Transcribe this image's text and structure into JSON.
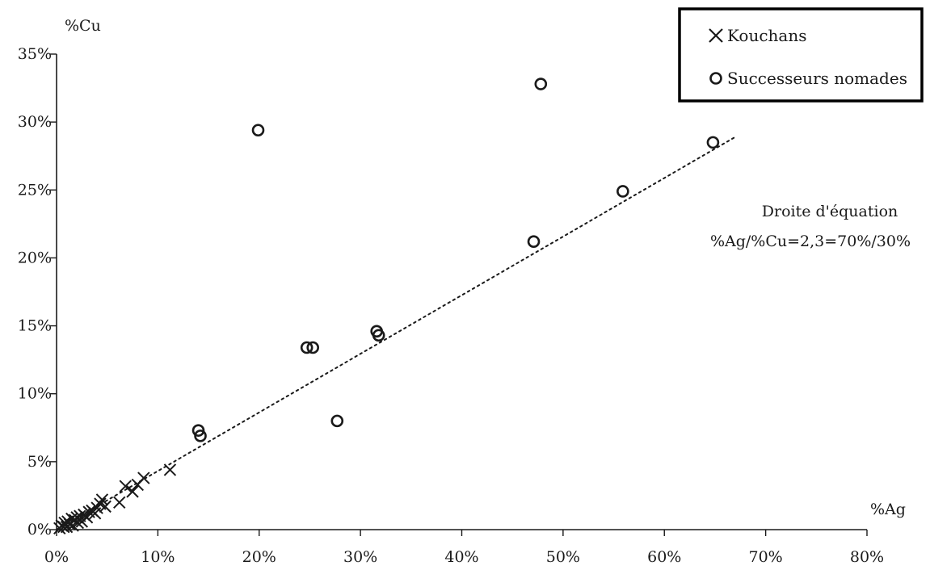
{
  "chart_data": {
    "type": "scatter",
    "xlabel": "%Ag",
    "ylabel": "%Cu",
    "xlim": [
      0,
      80
    ],
    "ylim": [
      0,
      35
    ],
    "x_ticks": [
      0,
      10,
      20,
      30,
      40,
      50,
      60,
      70,
      80
    ],
    "y_ticks": [
      0,
      5,
      10,
      15,
      20,
      25,
      30,
      35
    ],
    "x_tick_labels": [
      "0%",
      "10%",
      "20%",
      "30%",
      "40%",
      "50%",
      "60%",
      "70%",
      "80%"
    ],
    "y_tick_labels": [
      "0%",
      "5%",
      "10%",
      "15%",
      "20%",
      "25%",
      "30%",
      "35%"
    ],
    "grid": false,
    "legend_position": "top-right",
    "series": [
      {
        "name": "Kouchans",
        "marker": "x",
        "points": [
          [
            0.3,
            0.1
          ],
          [
            0.5,
            0.3
          ],
          [
            0.7,
            0.2
          ],
          [
            0.8,
            0.5
          ],
          [
            1.0,
            0.2
          ],
          [
            1.1,
            0.6
          ],
          [
            1.3,
            0.4
          ],
          [
            1.5,
            0.8
          ],
          [
            1.6,
            0.3
          ],
          [
            1.8,
            0.7
          ],
          [
            2.0,
            0.9
          ],
          [
            2.1,
            0.5
          ],
          [
            2.3,
            1.0
          ],
          [
            2.5,
            0.6
          ],
          [
            2.7,
            1.1
          ],
          [
            3.0,
            0.9
          ],
          [
            3.2,
            1.3
          ],
          [
            3.5,
            1.4
          ],
          [
            3.8,
            1.2
          ],
          [
            4.0,
            1.6
          ],
          [
            4.3,
            1.9
          ],
          [
            4.5,
            2.2
          ],
          [
            4.8,
            1.7
          ],
          [
            6.2,
            2.0
          ],
          [
            6.8,
            3.2
          ],
          [
            7.5,
            2.8
          ],
          [
            8.0,
            3.3
          ],
          [
            8.6,
            3.8
          ],
          [
            11.2,
            4.4
          ]
        ]
      },
      {
        "name": "Successeurs nomades",
        "marker": "o",
        "points": [
          [
            14.0,
            7.3
          ],
          [
            14.2,
            6.9
          ],
          [
            19.9,
            29.4
          ],
          [
            24.7,
            13.4
          ],
          [
            25.3,
            13.4
          ],
          [
            27.7,
            8.0
          ],
          [
            31.6,
            14.6
          ],
          [
            31.8,
            14.3
          ],
          [
            47.1,
            21.2
          ],
          [
            47.8,
            32.8
          ],
          [
            55.9,
            24.9
          ],
          [
            64.8,
            28.5
          ]
        ]
      }
    ],
    "trend_line": {
      "from": [
        0,
        0
      ],
      "to": [
        67,
        28.9
      ],
      "style": "dotted"
    },
    "annotation": {
      "line1": "Droite d'équation",
      "line2": "%Ag/%Cu=2,3=70%/30%"
    }
  }
}
